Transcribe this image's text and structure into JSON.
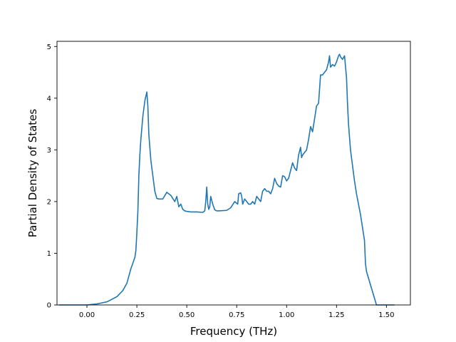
{
  "chart_data": {
    "type": "line",
    "title": "",
    "xlabel": "Frequency (THz)",
    "ylabel": "Partial Density of States",
    "xlim": [
      -0.15,
      1.62
    ],
    "ylim": [
      0,
      5.1
    ],
    "xticks": [
      0.0,
      0.25,
      0.5,
      0.75,
      1.0,
      1.25,
      1.5
    ],
    "xtick_labels": [
      "0.00",
      "0.25",
      "0.50",
      "0.75",
      "1.00",
      "1.25",
      "1.50"
    ],
    "yticks": [
      0,
      1,
      2,
      3,
      4,
      5
    ],
    "ytick_labels": [
      "0",
      "1",
      "2",
      "3",
      "4",
      "5"
    ],
    "grid": false,
    "legend": "none",
    "line_color": "#1f77b4",
    "series": [
      {
        "x": [
          -0.14,
          0.0,
          0.05,
          0.1,
          0.15,
          0.18,
          0.2,
          0.22,
          0.24,
          0.245,
          0.25,
          0.255,
          0.26,
          0.265,
          0.27,
          0.28,
          0.29,
          0.3,
          0.305,
          0.31,
          0.32,
          0.33,
          0.34,
          0.35,
          0.36,
          0.38,
          0.4,
          0.42,
          0.44,
          0.45,
          0.46,
          0.47,
          0.48,
          0.49,
          0.5,
          0.52,
          0.55,
          0.58,
          0.59,
          0.595,
          0.6,
          0.605,
          0.61,
          0.615,
          0.62,
          0.63,
          0.64,
          0.65,
          0.66,
          0.7,
          0.72,
          0.74,
          0.755,
          0.76,
          0.77,
          0.775,
          0.78,
          0.79,
          0.8,
          0.81,
          0.82,
          0.83,
          0.84,
          0.85,
          0.86,
          0.87,
          0.88,
          0.89,
          0.9,
          0.91,
          0.92,
          0.93,
          0.94,
          0.95,
          0.96,
          0.97,
          0.98,
          0.99,
          1.0,
          1.01,
          1.02,
          1.03,
          1.04,
          1.05,
          1.06,
          1.07,
          1.075,
          1.08,
          1.09,
          1.1,
          1.11,
          1.12,
          1.13,
          1.14,
          1.15,
          1.16,
          1.17,
          1.18,
          1.19,
          1.2,
          1.21,
          1.215,
          1.22,
          1.23,
          1.24,
          1.25,
          1.26,
          1.265,
          1.27,
          1.28,
          1.29,
          1.3,
          1.305,
          1.31,
          1.32,
          1.33,
          1.34,
          1.35,
          1.36,
          1.37,
          1.38,
          1.39,
          1.395,
          1.4,
          1.45,
          1.54
        ],
        "y": [
          0.0,
          0.0,
          0.02,
          0.06,
          0.16,
          0.28,
          0.42,
          0.7,
          0.92,
          1.05,
          1.4,
          1.8,
          2.5,
          2.9,
          3.2,
          3.65,
          3.95,
          4.12,
          3.85,
          3.3,
          2.8,
          2.5,
          2.2,
          2.06,
          2.05,
          2.05,
          2.18,
          2.12,
          2.0,
          2.1,
          1.9,
          1.95,
          1.85,
          1.82,
          1.81,
          1.8,
          1.8,
          1.79,
          1.82,
          2.0,
          2.28,
          1.95,
          1.85,
          1.9,
          2.1,
          1.95,
          1.84,
          1.82,
          1.82,
          1.83,
          1.88,
          2.0,
          1.95,
          2.15,
          2.17,
          2.1,
          1.95,
          2.05,
          2.0,
          1.95,
          1.95,
          2.0,
          1.95,
          2.1,
          2.05,
          2.0,
          2.2,
          2.25,
          2.2,
          2.2,
          2.15,
          2.25,
          2.45,
          2.35,
          2.3,
          2.28,
          2.5,
          2.48,
          2.4,
          2.45,
          2.6,
          2.75,
          2.65,
          2.6,
          2.9,
          3.05,
          2.85,
          2.9,
          2.95,
          3.0,
          3.2,
          3.45,
          3.35,
          3.6,
          3.85,
          3.9,
          4.45,
          4.45,
          4.5,
          4.55,
          4.7,
          4.82,
          4.6,
          4.65,
          4.62,
          4.7,
          4.82,
          4.85,
          4.8,
          4.75,
          4.82,
          4.4,
          3.9,
          3.5,
          3.0,
          2.7,
          2.4,
          2.15,
          1.95,
          1.75,
          1.5,
          1.25,
          0.8,
          0.65,
          0.0,
          0.0
        ]
      }
    ]
  }
}
